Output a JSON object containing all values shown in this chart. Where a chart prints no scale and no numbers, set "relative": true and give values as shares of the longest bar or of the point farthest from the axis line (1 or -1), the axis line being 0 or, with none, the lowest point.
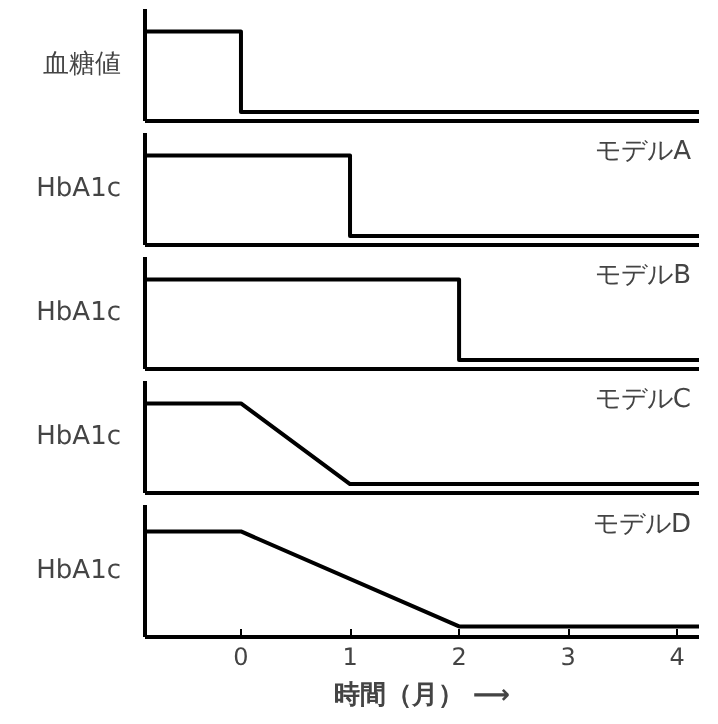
{
  "chart_data": [
    {
      "type": "line",
      "ylabel": "血糖値",
      "relative": true,
      "xlim": [
        -0.88,
        4.2
      ],
      "xticks": [
        0,
        1,
        2,
        3,
        4
      ],
      "tick_labels": false,
      "x": [
        -0.88,
        0,
        0,
        4.2
      ],
      "series": [
        {
          "color": "#000000",
          "values": [
            1,
            1,
            0.1,
            0.1
          ]
        }
      ]
    },
    {
      "type": "line",
      "title": "モデルA",
      "ylabel": "HbA1c",
      "relative": true,
      "xlim": [
        -0.88,
        4.2
      ],
      "xticks": [
        0,
        1,
        2,
        3,
        4
      ],
      "tick_labels": false,
      "x": [
        -0.88,
        1,
        1,
        4.2
      ],
      "series": [
        {
          "color": "#000000",
          "values": [
            1,
            1,
            0.1,
            0.1
          ]
        }
      ]
    },
    {
      "type": "line",
      "title": "モデルB",
      "ylabel": "HbA1c",
      "relative": true,
      "xlim": [
        -0.88,
        4.2
      ],
      "xticks": [
        0,
        1,
        2,
        3,
        4
      ],
      "tick_labels": false,
      "x": [
        -0.88,
        2,
        2,
        4.2
      ],
      "series": [
        {
          "color": "#000000",
          "values": [
            1,
            1,
            0.1,
            0.1
          ]
        }
      ]
    },
    {
      "type": "line",
      "title": "モデルC",
      "ylabel": "HbA1c",
      "relative": true,
      "xlim": [
        -0.88,
        4.2
      ],
      "xticks": [
        0,
        1,
        2,
        3,
        4
      ],
      "tick_labels": false,
      "x": [
        -0.88,
        0,
        1,
        4.2
      ],
      "series": [
        {
          "color": "#000000",
          "values": [
            1,
            1,
            0.1,
            0.1
          ]
        }
      ]
    },
    {
      "type": "line",
      "title": "モデルD",
      "ylabel": "HbA1c",
      "xlabel": "時間（月） ⟶",
      "relative": true,
      "xlim": [
        -0.88,
        4.2
      ],
      "xticks": [
        0,
        1,
        2,
        3,
        4
      ],
      "tick_labels": "x",
      "x": [
        -0.88,
        0,
        2,
        4.2
      ],
      "series": [
        {
          "color": "#000000",
          "values": [
            1,
            1,
            0.1,
            0.1
          ]
        }
      ]
    }
  ]
}
